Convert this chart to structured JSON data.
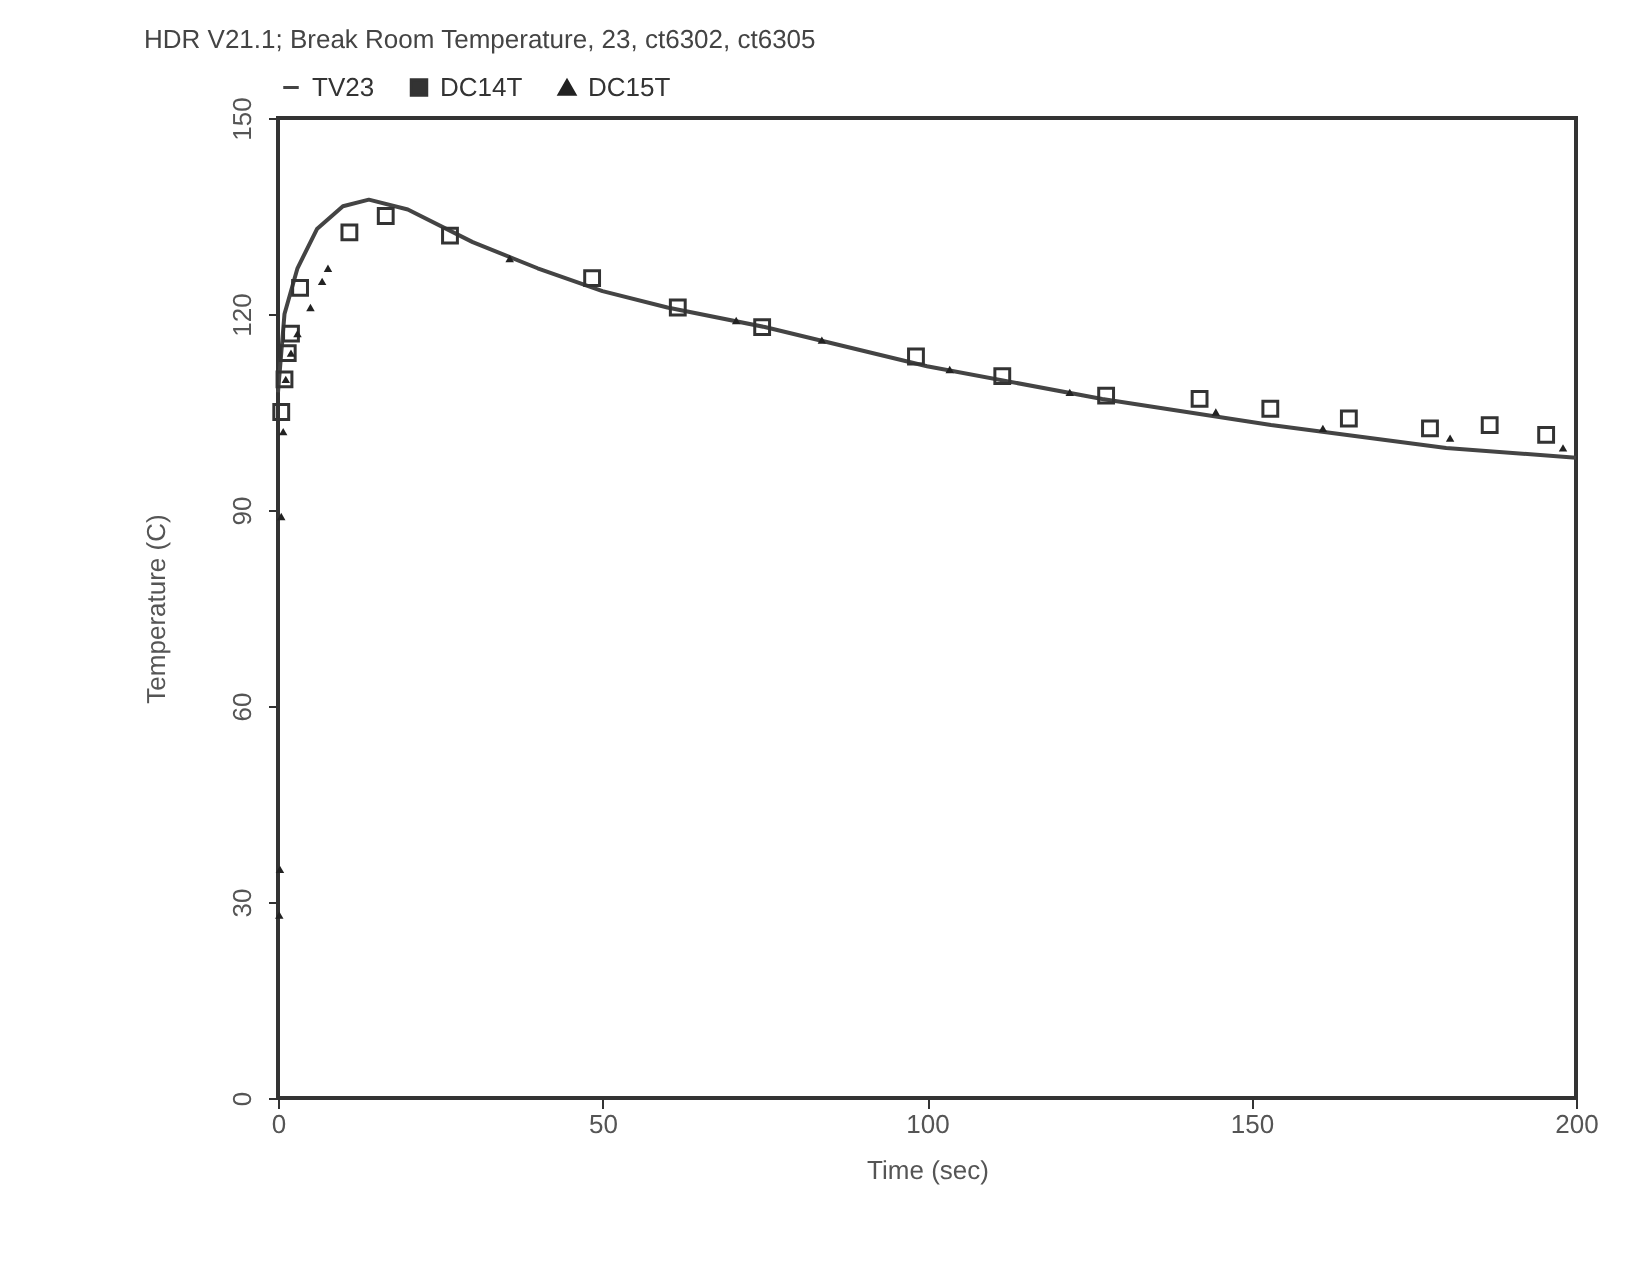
{
  "chart_data": {
    "type": "line",
    "title": "HDR V21.1; Break Room Temperature, 23, ct6302, ct6305",
    "xlabel": "Time (sec)",
    "ylabel": "Temperature (C)",
    "xlim": [
      0,
      200
    ],
    "xticks": [
      0,
      50,
      100,
      150,
      200
    ],
    "ylim": [
      0,
      150
    ],
    "yticks": [
      0,
      30,
      60,
      90,
      120,
      150
    ],
    "grid": false,
    "legend": "top left",
    "series": [
      {
        "name": "TV23",
        "marker": "none",
        "color": "#444444",
        "x": [
          0,
          1,
          3,
          6,
          10,
          14,
          20,
          30,
          40,
          50,
          60,
          75,
          100,
          127,
          153,
          180,
          200
        ],
        "values": [
          108,
          120,
          127,
          133,
          136.5,
          137.5,
          136,
          131,
          127,
          123.5,
          121,
          118,
          112,
          107,
          103,
          99.5,
          98
        ]
      },
      {
        "name": "DC14T",
        "type": "scatter",
        "marker": "square",
        "color": "#333333",
        "x": [
          0.5,
          1,
          1.5,
          2,
          3.4,
          11,
          16.6,
          26.5,
          48.4,
          61.6,
          74.6,
          98.3,
          111.6,
          127.6,
          142,
          152.9,
          165,
          177.5,
          186.7,
          195.4
        ],
        "values": [
          105,
          110,
          114,
          117,
          124,
          132.5,
          135,
          132,
          125.5,
          121,
          118,
          113.5,
          110.5,
          107.5,
          107,
          105.5,
          104,
          102.5,
          103,
          101.5
        ]
      },
      {
        "name": "DC15T",
        "type": "scatter",
        "marker": "triangle",
        "color": "#222222",
        "x": [
          0.2,
          0.3,
          0.5,
          0.8,
          1.2,
          2,
          3,
          5,
          6.8,
          7.7,
          35.7,
          70.6,
          83.8,
          103.5,
          122,
          144.5,
          161,
          180.6,
          198
        ],
        "values": [
          28,
          35,
          89,
          102,
          110,
          114,
          117,
          121,
          125,
          127,
          128.5,
          119,
          116,
          111.5,
          108,
          105,
          102.5,
          101,
          99.5
        ]
      }
    ]
  }
}
